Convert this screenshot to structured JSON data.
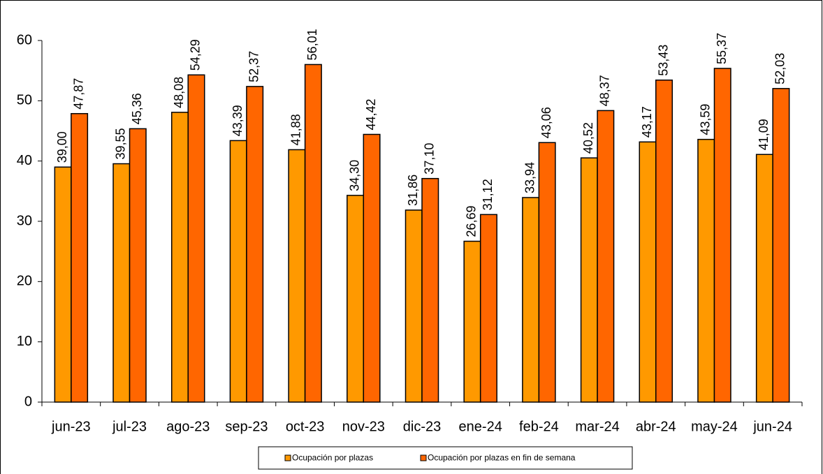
{
  "chart_data": {
    "type": "bar",
    "categories": [
      "jun-23",
      "jul-23",
      "ago-23",
      "sep-23",
      "oct-23",
      "nov-23",
      "dic-23",
      "ene-24",
      "feb-24",
      "mar-24",
      "abr-24",
      "may-24",
      "jun-24"
    ],
    "series": [
      {
        "name": "Ocupación por plazas",
        "color": "#ff9900",
        "values": [
          39.0,
          39.55,
          48.08,
          43.39,
          41.88,
          34.3,
          31.86,
          26.69,
          33.94,
          40.52,
          43.17,
          43.59,
          41.09
        ],
        "value_labels": [
          "39,00",
          "39,55",
          "48,08",
          "43,39",
          "41,88",
          "34,30",
          "31,86",
          "26,69",
          "33,94",
          "40,52",
          "43,17",
          "43,59",
          "41,09"
        ]
      },
      {
        "name": "Ocupación por plazas en fin de semana",
        "color": "#ff6600",
        "values": [
          47.87,
          45.36,
          54.29,
          52.37,
          56.01,
          44.42,
          37.1,
          31.12,
          43.06,
          48.37,
          53.43,
          55.37,
          52.03
        ],
        "value_labels": [
          "47,87",
          "45,36",
          "54,29",
          "52,37",
          "56,01",
          "44,42",
          "37,10",
          "31,12",
          "43,06",
          "48,37",
          "53,43",
          "55,37",
          "52,03"
        ]
      }
    ],
    "ylim": [
      0,
      60
    ],
    "yticks": [
      0,
      10,
      20,
      30,
      40,
      50,
      60
    ],
    "grid": false,
    "legend": "bottom"
  }
}
